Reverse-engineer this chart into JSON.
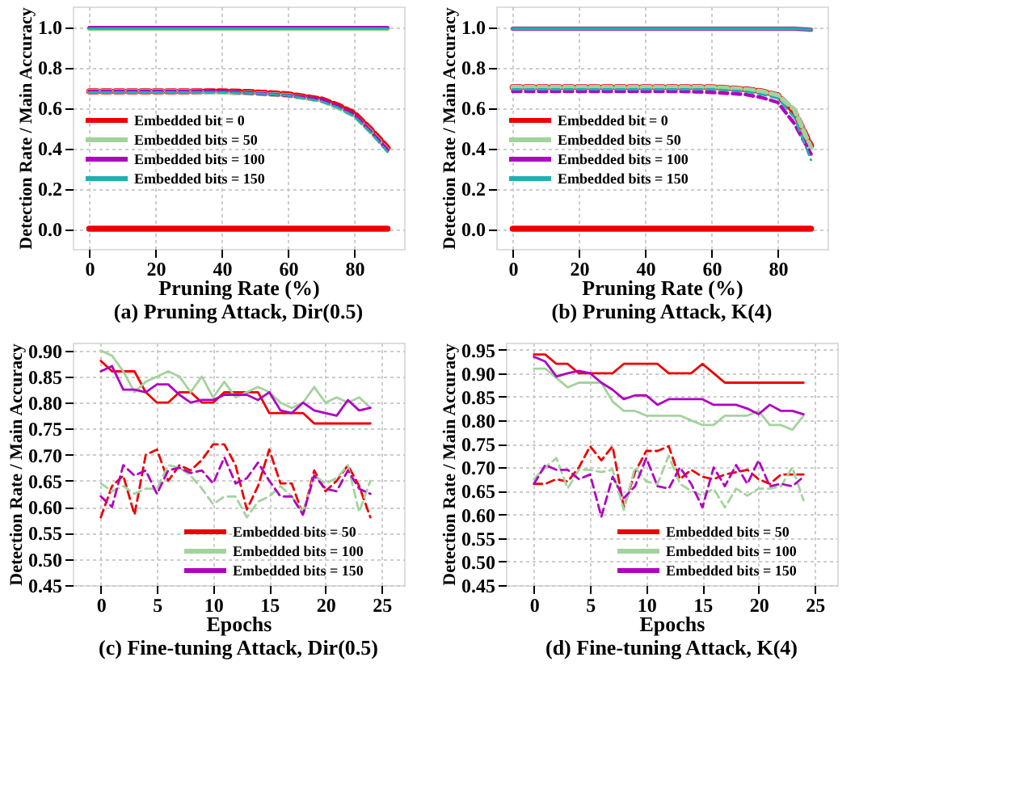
{
  "chart_data": [
    {
      "type": "line",
      "title": "(a) Pruning Attack, Dir(0.5)",
      "xlabel": "Pruning Rate (%)",
      "ylabel": "Detection Rate / Main Accuracy",
      "xlim": [
        -5,
        95
      ],
      "xticks": [
        0,
        20,
        40,
        60,
        80
      ],
      "ylim": [
        -0.1,
        1.1
      ],
      "yticks": [
        {
          "value": 0,
          "label": "0.0"
        },
        0.2,
        0.4,
        0.6,
        0.8,
        {
          "value": 1,
          "label": "1.0"
        }
      ],
      "grid": true,
      "legend": "left",
      "x": [
        0,
        10,
        20,
        30,
        40,
        50,
        60,
        70,
        75,
        80,
        85,
        90
      ],
      "series": [
        {
          "name": "Embedded bit = 0",
          "color": "#ee0000",
          "line_style": "solid",
          "values": [
            0,
            0,
            0,
            0,
            0,
            0,
            0,
            0,
            0,
            0,
            0,
            0
          ]
        },
        {
          "name": "Embedded bits = 50",
          "color": "#a3d39c",
          "line_style": "solid",
          "values": [
            0.99,
            0.99,
            0.99,
            0.99,
            0.99,
            0.99,
            0.99,
            0.99,
            0.99,
            0.99,
            0.99,
            0.99
          ]
        },
        {
          "name": "Embedded bits = 100",
          "color": "#b000c0",
          "line_style": "solid",
          "values": [
            0.995,
            0.995,
            0.995,
            0.995,
            0.995,
            0.995,
            0.995,
            0.995,
            0.995,
            0.995,
            0.995,
            0.995
          ]
        },
        {
          "name": "Embedded bits = 150",
          "color": "#20b0b0",
          "line_style": "solid",
          "values": [
            0.99,
            0.99,
            0.99,
            0.99,
            0.99,
            0.99,
            0.99,
            0.99,
            0.99,
            0.99,
            0.99,
            0.99
          ]
        },
        {
          "color": "#ee0000",
          "line_style": "dashed",
          "values": [
            0.68,
            0.68,
            0.68,
            0.68,
            0.68,
            0.675,
            0.665,
            0.64,
            0.61,
            0.57,
            0.49,
            0.4
          ]
        },
        {
          "color": "#a3d39c",
          "line_style": "dashed",
          "values": [
            0.68,
            0.68,
            0.68,
            0.68,
            0.675,
            0.67,
            0.66,
            0.635,
            0.6,
            0.56,
            0.48,
            0.39
          ]
        },
        {
          "color": "#b000c0",
          "line_style": "dashed",
          "values": [
            0.68,
            0.68,
            0.68,
            0.68,
            0.68,
            0.67,
            0.66,
            0.64,
            0.605,
            0.565,
            0.48,
            0.39
          ]
        },
        {
          "color": "#20b0b0",
          "line_style": "dashed",
          "values": [
            0.675,
            0.675,
            0.675,
            0.675,
            0.675,
            0.67,
            0.66,
            0.63,
            0.6,
            0.555,
            0.475,
            0.38
          ]
        }
      ]
    },
    {
      "type": "line",
      "title": "(b) Pruning Attack, K(4)",
      "xlabel": "Pruning Rate (%)",
      "ylabel": "Detection Rate / Main Accuracy",
      "xlim": [
        -5,
        95
      ],
      "xticks": [
        0,
        20,
        40,
        60,
        80
      ],
      "ylim": [
        -0.1,
        1.1
      ],
      "yticks": [
        {
          "value": 0,
          "label": "0.0"
        },
        0.2,
        0.4,
        0.6,
        0.8,
        {
          "value": 1,
          "label": "1.0"
        }
      ],
      "grid": true,
      "legend": "left",
      "x": [
        0,
        10,
        20,
        30,
        40,
        50,
        60,
        70,
        75,
        80,
        85,
        90
      ],
      "series": [
        {
          "name": "Embedded bit = 0",
          "color": "#ee0000",
          "line_style": "solid",
          "values": [
            0,
            0,
            0,
            0,
            0,
            0,
            0,
            0,
            0,
            0,
            0,
            0
          ]
        },
        {
          "name": "Embedded bits = 50",
          "color": "#a3d39c",
          "line_style": "solid",
          "values": [
            0.99,
            0.99,
            0.99,
            0.99,
            0.99,
            0.99,
            0.99,
            0.99,
            0.99,
            0.99,
            0.99,
            0.985
          ]
        },
        {
          "name": "Embedded bits = 100",
          "color": "#b000c0",
          "line_style": "solid",
          "values": [
            0.99,
            0.99,
            0.99,
            0.99,
            0.99,
            0.99,
            0.99,
            0.99,
            0.99,
            0.99,
            0.99,
            0.985
          ]
        },
        {
          "name": "Embedded bits = 150",
          "color": "#20b0b0",
          "line_style": "solid",
          "values": [
            0.99,
            0.99,
            0.99,
            0.99,
            0.99,
            0.99,
            0.99,
            0.99,
            0.99,
            0.99,
            0.99,
            0.985
          ]
        },
        {
          "color": "#ee0000",
          "line_style": "dashed",
          "values": [
            0.7,
            0.7,
            0.7,
            0.7,
            0.7,
            0.7,
            0.7,
            0.69,
            0.68,
            0.66,
            0.58,
            0.41
          ]
        },
        {
          "color": "#a3d39c",
          "line_style": "dashed",
          "values": [
            0.7,
            0.7,
            0.7,
            0.7,
            0.7,
            0.7,
            0.7,
            0.69,
            0.68,
            0.66,
            0.59,
            0.4
          ]
        },
        {
          "color": "#b000c0",
          "line_style": "dashed",
          "values": [
            0.68,
            0.68,
            0.68,
            0.68,
            0.68,
            0.68,
            0.675,
            0.665,
            0.65,
            0.625,
            0.52,
            0.37
          ]
        },
        {
          "color": "#20b0b0",
          "line_style": "dashed",
          "values": [
            0.69,
            0.69,
            0.69,
            0.69,
            0.69,
            0.69,
            0.69,
            0.68,
            0.665,
            0.645,
            0.55,
            0.34
          ]
        }
      ]
    },
    {
      "type": "line",
      "title": "(c) Fine-tuning Attack, Dir(0.5)",
      "xlabel": "Epochs",
      "ylabel": "Detection Rate / Main Accuracy",
      "xlim": [
        -2.5,
        27
      ],
      "xticks": [
        0,
        5,
        10,
        15,
        20,
        25
      ],
      "ylim": [
        0.45,
        0.915
      ],
      "yticks": [
        {
          "value": 0.45,
          "label": "0.45"
        },
        {
          "value": 0.5,
          "label": "0.50"
        },
        {
          "value": 0.55,
          "label": "0.55"
        },
        {
          "value": 0.6,
          "label": "0.60"
        },
        {
          "value": 0.65,
          "label": "0.65"
        },
        {
          "value": 0.7,
          "label": "0.70"
        },
        {
          "value": 0.75,
          "label": "0.75"
        },
        {
          "value": 0.8,
          "label": "0.80"
        },
        {
          "value": 0.85,
          "label": "0.85"
        },
        {
          "value": 0.9,
          "label": "0.90"
        }
      ],
      "grid": true,
      "legend": "bottom right",
      "x": [
        0,
        1,
        2,
        3,
        4,
        5,
        6,
        7,
        8,
        9,
        10,
        11,
        12,
        13,
        14,
        15,
        16,
        17,
        18,
        19,
        20,
        21,
        22,
        23,
        24
      ],
      "series": [
        {
          "name": "Embedded bits = 50",
          "color": "#ee0000",
          "line_style": "solid",
          "values": [
            0.88,
            0.86,
            0.86,
            0.86,
            0.82,
            0.8,
            0.8,
            0.82,
            0.82,
            0.8,
            0.8,
            0.82,
            0.82,
            0.82,
            0.82,
            0.78,
            0.78,
            0.78,
            0.78,
            0.76,
            0.76,
            0.76,
            0.76,
            0.76,
            0.76
          ]
        },
        {
          "name": "Embedded bits = 100",
          "color": "#a3d39c",
          "line_style": "solid",
          "values": [
            0.9,
            0.89,
            0.86,
            0.82,
            0.84,
            0.85,
            0.86,
            0.85,
            0.82,
            0.85,
            0.81,
            0.84,
            0.81,
            0.82,
            0.83,
            0.82,
            0.8,
            0.79,
            0.8,
            0.83,
            0.8,
            0.81,
            0.8,
            0.81,
            0.79
          ]
        },
        {
          "name": "Embedded bits = 150",
          "color": "#b000c0",
          "line_style": "solid",
          "values": [
            0.86,
            0.87,
            0.825,
            0.825,
            0.82,
            0.835,
            0.835,
            0.815,
            0.8,
            0.805,
            0.805,
            0.815,
            0.815,
            0.815,
            0.805,
            0.82,
            0.785,
            0.78,
            0.8,
            0.785,
            0.78,
            0.775,
            0.805,
            0.785,
            0.79
          ]
        },
        {
          "color": "#ee0000",
          "line_style": "dashed",
          "values": [
            0.58,
            0.64,
            0.66,
            0.585,
            0.7,
            0.71,
            0.65,
            0.68,
            0.67,
            0.69,
            0.72,
            0.72,
            0.68,
            0.595,
            0.64,
            0.71,
            0.645,
            0.645,
            0.585,
            0.67,
            0.63,
            0.65,
            0.68,
            0.64,
            0.58
          ]
        },
        {
          "color": "#a3d39c",
          "line_style": "dashed",
          "values": [
            0.645,
            0.63,
            0.64,
            0.625,
            0.635,
            0.635,
            0.68,
            0.675,
            0.66,
            0.635,
            0.605,
            0.62,
            0.62,
            0.58,
            0.61,
            0.62,
            0.64,
            0.62,
            0.59,
            0.66,
            0.645,
            0.655,
            0.68,
            0.59,
            0.65
          ]
        },
        {
          "color": "#b000c0",
          "line_style": "dashed",
          "values": [
            0.62,
            0.6,
            0.68,
            0.66,
            0.67,
            0.625,
            0.67,
            0.675,
            0.665,
            0.67,
            0.645,
            0.695,
            0.645,
            0.655,
            0.685,
            0.65,
            0.62,
            0.62,
            0.585,
            0.66,
            0.635,
            0.63,
            0.67,
            0.635,
            0.625
          ]
        }
      ]
    },
    {
      "type": "line",
      "title": "(d) Fine-tuning Attack, K(4)",
      "xlabel": "Epochs",
      "ylabel": "Detection Rate / Main Accuracy",
      "xlim": [
        -2.5,
        27
      ],
      "xticks": [
        0,
        5,
        10,
        15,
        20,
        25
      ],
      "ylim": [
        0.45,
        0.965
      ],
      "yticks": [
        {
          "value": 0.45,
          "label": "0.45"
        },
        {
          "value": 0.5,
          "label": "0.50"
        },
        {
          "value": 0.55,
          "label": "0.55"
        },
        {
          "value": 0.6,
          "label": "0.60"
        },
        {
          "value": 0.65,
          "label": "0.65"
        },
        {
          "value": 0.7,
          "label": "0.70"
        },
        {
          "value": 0.75,
          "label": "0.75"
        },
        {
          "value": 0.8,
          "label": "0.80"
        },
        {
          "value": 0.85,
          "label": "0.85"
        },
        {
          "value": 0.9,
          "label": "0.90"
        },
        {
          "value": 0.95,
          "label": "0.95"
        }
      ],
      "grid": true,
      "legend": "bottom right",
      "x": [
        0,
        1,
        2,
        3,
        4,
        5,
        6,
        7,
        8,
        9,
        10,
        11,
        12,
        13,
        14,
        15,
        16,
        17,
        18,
        19,
        20,
        21,
        22,
        23,
        24
      ],
      "series": [
        {
          "name": "Embedded bits = 50",
          "color": "#ee0000",
          "line_style": "solid",
          "values": [
            0.94,
            0.94,
            0.92,
            0.92,
            0.9,
            0.9,
            0.9,
            0.9,
            0.92,
            0.92,
            0.92,
            0.92,
            0.9,
            0.9,
            0.9,
            0.92,
            0.9,
            0.88,
            0.88,
            0.88,
            0.88,
            0.88,
            0.88,
            0.88,
            0.88
          ]
        },
        {
          "name": "Embedded bits = 100",
          "color": "#a3d39c",
          "line_style": "solid",
          "values": [
            0.91,
            0.91,
            0.89,
            0.87,
            0.88,
            0.88,
            0.88,
            0.84,
            0.82,
            0.82,
            0.81,
            0.81,
            0.81,
            0.81,
            0.8,
            0.79,
            0.79,
            0.81,
            0.81,
            0.81,
            0.82,
            0.79,
            0.79,
            0.78,
            0.81
          ]
        },
        {
          "name": "Embedded bits = 150",
          "color": "#b000c0",
          "line_style": "solid",
          "values": [
            0.935,
            0.925,
            0.893,
            0.9,
            0.905,
            0.9,
            0.88,
            0.865,
            0.845,
            0.853,
            0.853,
            0.833,
            0.845,
            0.845,
            0.845,
            0.845,
            0.833,
            0.833,
            0.833,
            0.825,
            0.813,
            0.833,
            0.82,
            0.82,
            0.813
          ]
        },
        {
          "color": "#ee0000",
          "line_style": "dashed",
          "values": [
            0.665,
            0.665,
            0.675,
            0.67,
            0.7,
            0.745,
            0.715,
            0.745,
            0.615,
            0.69,
            0.735,
            0.735,
            0.745,
            0.675,
            0.695,
            0.68,
            0.675,
            0.685,
            0.69,
            0.695,
            0.675,
            0.665,
            0.685,
            0.685,
            0.685
          ]
        },
        {
          "color": "#a3d39c",
          "line_style": "dashed",
          "values": [
            0.675,
            0.7,
            0.72,
            0.655,
            0.695,
            0.695,
            0.69,
            0.695,
            0.61,
            0.7,
            0.67,
            0.665,
            0.725,
            0.665,
            0.65,
            0.64,
            0.655,
            0.615,
            0.655,
            0.64,
            0.655,
            0.655,
            0.66,
            0.7,
            0.63
          ]
        },
        {
          "color": "#b000c0",
          "line_style": "dashed",
          "values": [
            0.665,
            0.705,
            0.695,
            0.695,
            0.675,
            0.685,
            0.595,
            0.68,
            0.635,
            0.66,
            0.72,
            0.66,
            0.655,
            0.7,
            0.665,
            0.615,
            0.7,
            0.66,
            0.705,
            0.665,
            0.715,
            0.66,
            0.665,
            0.66,
            0.68
          ]
        }
      ]
    }
  ]
}
